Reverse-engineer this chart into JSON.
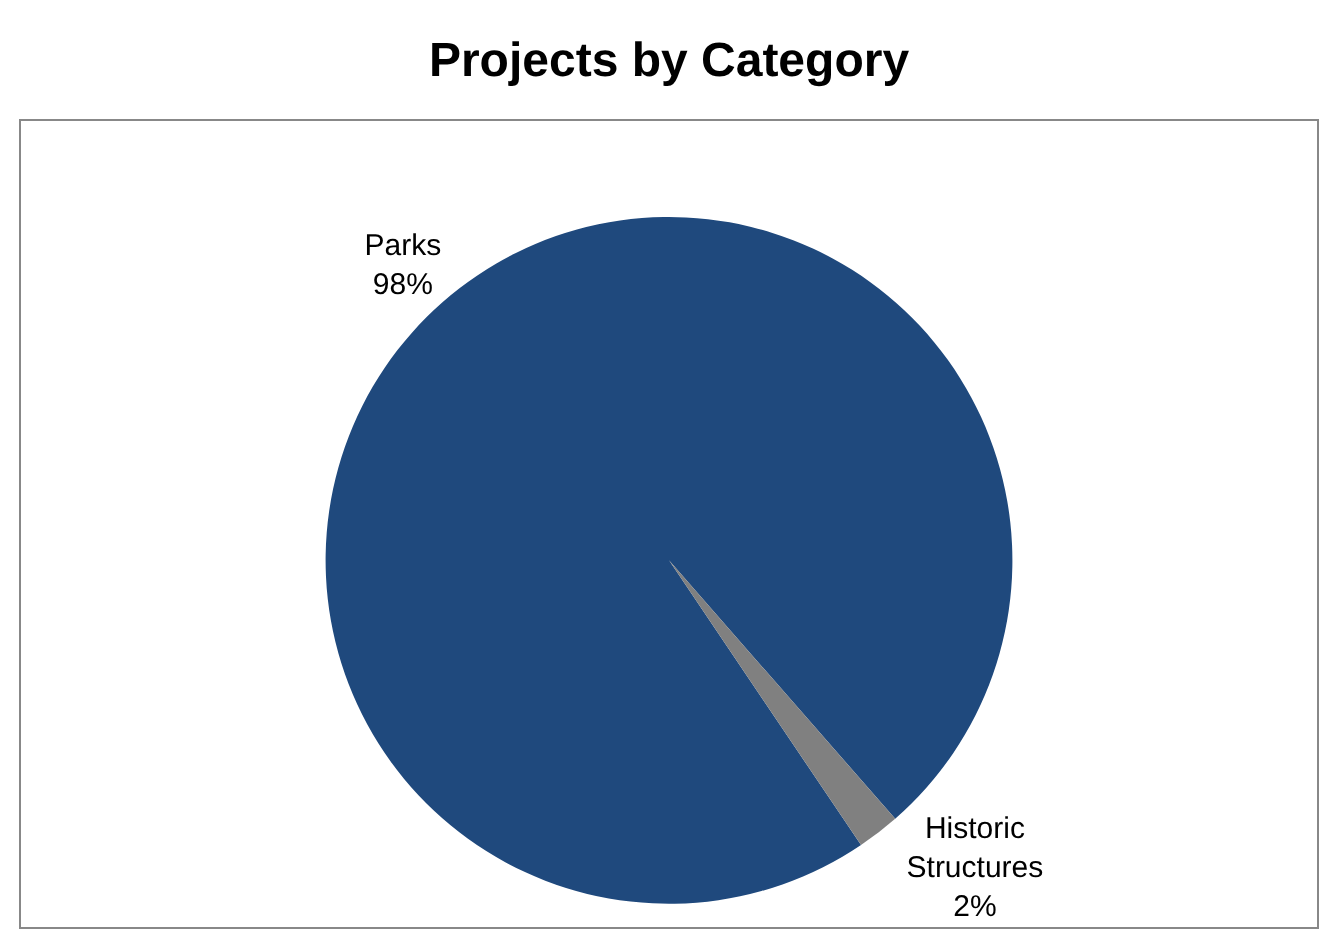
{
  "chart_data": {
    "type": "pie",
    "title": "Projects by Category",
    "categories": [
      "Parks",
      "Historic Structures"
    ],
    "values": [
      98,
      2
    ],
    "value_labels": [
      "98%",
      "2%"
    ],
    "colors": [
      "#1f497d",
      "#808080"
    ],
    "legend": false
  }
}
